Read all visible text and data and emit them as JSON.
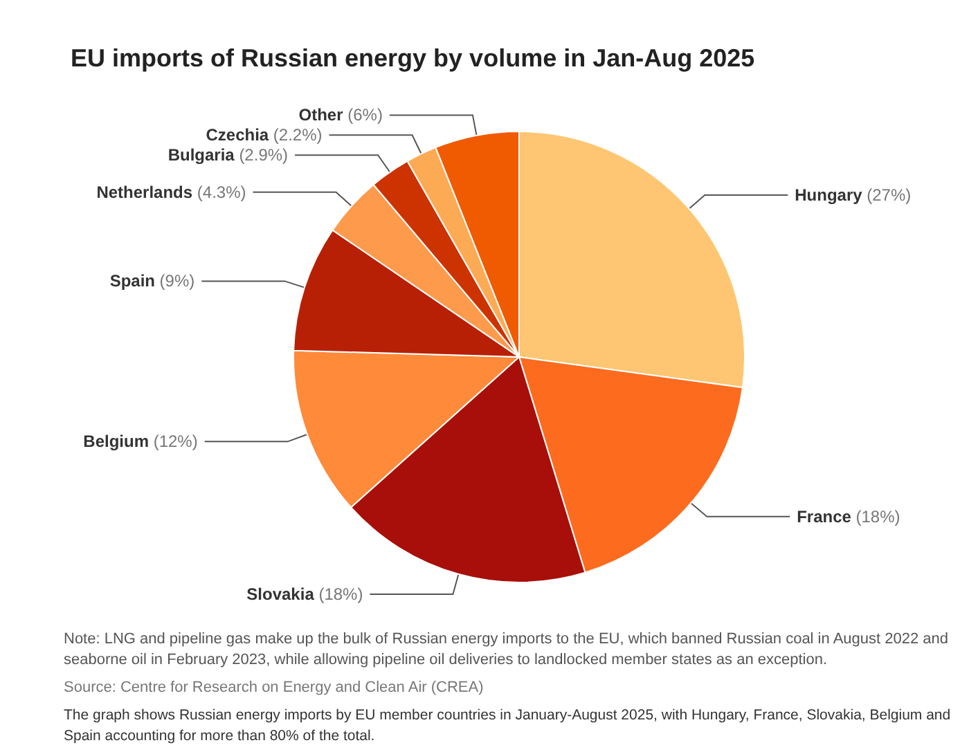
{
  "chart_data": {
    "type": "pie",
    "title": "EU imports of Russian energy by volume in Jan-Aug 2025",
    "categories": [
      "Hungary",
      "France",
      "Slovakia",
      "Belgium",
      "Spain",
      "Netherlands",
      "Bulgaria",
      "Czechia",
      "Other"
    ],
    "values": [
      27,
      18,
      18,
      12,
      9,
      4.3,
      2.9,
      2.2,
      6
    ],
    "value_labels": [
      "(27%)",
      "(18%)",
      "(18%)",
      "(12%)",
      "(9%)",
      "(4.3%)",
      "(2.9%)",
      "(2.2%)",
      "(6%)"
    ],
    "colors": [
      "#fec672",
      "#fd6b1f",
      "#a80f0a",
      "#fe8a3a",
      "#b82005",
      "#fe9a4b",
      "#cc3300",
      "#fdaa55",
      "#f05a00"
    ],
    "legend": false,
    "annotations": [
      "Note: LNG and pipeline gas make up the bulk of Russian energy imports to the EU, which banned Russian coal in August 2022 and seaborne oil in February 2023, while allowing pipeline oil deliveries to landlocked member states as an exception.",
      "Source: Centre for Research on Energy and Clean Air (CREA)",
      "The graph shows Russian energy imports by EU member countries in January-August 2025, with Hungary, France, Slovakia, Belgium and Spain accounting for more than 80% of the total."
    ]
  }
}
